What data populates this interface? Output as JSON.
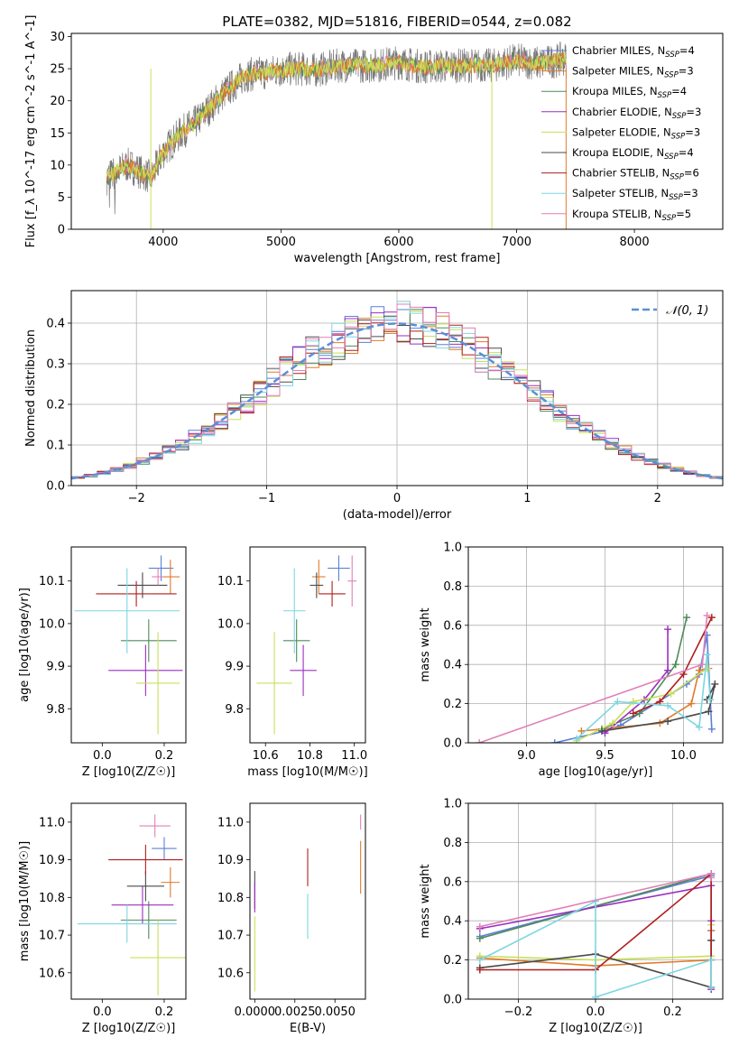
{
  "title": "PLATE=0382, MJD=51816, FIBERID=0544, z=0.082",
  "colors": [
    "#5b7fd6",
    "#e07a2b",
    "#4f8a5b",
    "#9b2fc0",
    "#c8e05a",
    "#4a4a4a",
    "#b01e1e",
    "#7dd6e0",
    "#e080b8"
  ],
  "chart_data": [
    {
      "id": "spectrum",
      "type": "line",
      "xlabel": "wavelength [Angstrom, rest frame]",
      "ylabel": "Flux [f_λ 10^-17 erg cm^-2 s^-1 A^-1]",
      "xlim": [
        3220,
        8750
      ],
      "ylim": [
        0,
        30.5
      ],
      "xticks": [
        "4000",
        "5000",
        "6000",
        "7000",
        "8000"
      ],
      "yticks": [
        "0",
        "5",
        "10",
        "15",
        "20",
        "25",
        "30"
      ],
      "grid": false,
      "legend_position": "top-right",
      "continuum": {
        "x": [
          3520,
          3700,
          3900,
          4000,
          4150,
          4300,
          4500,
          4700,
          4900,
          5100,
          5300,
          5500,
          5800,
          6000,
          6200,
          6500,
          6800,
          7000,
          7200,
          7400
        ],
        "y": [
          8,
          10,
          8,
          12,
          15,
          17,
          21,
          24,
          24.5,
          25,
          24.8,
          25.5,
          25.5,
          26,
          25.3,
          25.5,
          25.5,
          26.3,
          25.8,
          26.5
        ]
      },
      "data_range": [
        3520,
        7420
      ],
      "models_range": [
        3520,
        7420
      ],
      "series": [
        {
          "name": "Chabrier MILES, N_SSP=4",
          "name_main": "Chabrier MILES, N",
          "name_sub": "SSP",
          "name_tail": "=4"
        },
        {
          "name": "Salpeter MILES, N_SSP=3",
          "name_main": "Salpeter MILES, N",
          "name_sub": "SSP",
          "name_tail": "=3"
        },
        {
          "name": "Kroupa MILES, N_SSP=4",
          "name_main": "Kroupa MILES, N",
          "name_sub": "SSP",
          "name_tail": "=4"
        },
        {
          "name": "Chabrier ELODIE, N_SSP=3",
          "name_main": "Chabrier ELODIE, N",
          "name_sub": "SSP",
          "name_tail": "=3"
        },
        {
          "name": "Salpeter ELODIE, N_SSP=3",
          "name_main": "Salpeter ELODIE, N",
          "name_sub": "SSP",
          "name_tail": "=3"
        },
        {
          "name": "Kroupa ELODIE, N_SSP=4",
          "name_main": "Kroupa ELODIE, N",
          "name_sub": "SSP",
          "name_tail": "=4"
        },
        {
          "name": "Chabrier STELIB, N_SSP=6",
          "name_main": "Chabrier STELIB, N",
          "name_sub": "SSP",
          "name_tail": "=6"
        },
        {
          "name": "Salpeter STELIB, N_SSP=3",
          "name_main": "Salpeter STELIB, N",
          "name_sub": "SSP",
          "name_tail": "=3"
        },
        {
          "name": "Kroupa STELIB, N_SSP=5",
          "name_main": "Kroupa STELIB, N",
          "name_sub": "SSP",
          "name_tail": "=5"
        }
      ]
    },
    {
      "id": "residuals",
      "type": "histogram",
      "xlabel": "(data-model)/error",
      "ylabel": "Normed distribution",
      "xlim": [
        -2.5,
        2.5
      ],
      "ylim": [
        0,
        0.48
      ],
      "xticks": [
        "−2",
        "−1",
        "0",
        "1",
        "2"
      ],
      "xtick_values": [
        -2,
        -1,
        0,
        1,
        2
      ],
      "yticks": [
        "0.0",
        "0.1",
        "0.2",
        "0.3",
        "0.4"
      ],
      "ytick_values": [
        0,
        0.1,
        0.2,
        0.3,
        0.4
      ],
      "grid": true,
      "bin_width": 0.1,
      "legend": "𝒩(0, 1)",
      "legend_position": "top-right"
    },
    {
      "id": "age_vs_Z",
      "type": "errorbar",
      "xlabel": "Z [log10(Z/Z☉)]",
      "ylabel": "age [log10(age/yr)]",
      "xlim": [
        -0.1,
        0.27
      ],
      "ylim": [
        9.72,
        10.18
      ],
      "xticks": [
        "0.0",
        "0.2"
      ],
      "xtick_values": [
        0,
        0.2
      ],
      "yticks": [
        "9.8",
        "9.9",
        "10.0",
        "10.1"
      ],
      "ytick_values": [
        9.8,
        9.9,
        10.0,
        10.1
      ],
      "points": [
        {
          "x": 0.19,
          "y": 10.13,
          "xerr": 0.04,
          "yerr": 0.03,
          "c": 0
        },
        {
          "x": 0.22,
          "y": 10.11,
          "xerr": 0.03,
          "yerr": 0.04,
          "c": 1
        },
        {
          "x": 0.15,
          "y": 9.96,
          "xerr": 0.09,
          "yerr": 0.05,
          "c": 2
        },
        {
          "x": 0.14,
          "y": 9.89,
          "xerr": 0.12,
          "yerr": 0.06,
          "c": 3
        },
        {
          "x": 0.18,
          "y": 9.86,
          "xerr": 0.07,
          "yerr": 0.12,
          "c": 4
        },
        {
          "x": 0.13,
          "y": 10.09,
          "xerr": 0.08,
          "yerr": 0.03,
          "c": 5
        },
        {
          "x": 0.11,
          "y": 10.07,
          "xerr": 0.13,
          "yerr": 0.03,
          "c": 6
        },
        {
          "x": 0.08,
          "y": 10.03,
          "xerr": 0.17,
          "yerr": 0.1,
          "c": 7
        },
        {
          "x": 0.18,
          "y": 10.11,
          "xerr": 0.02,
          "yerr": 0.02,
          "c": 8
        }
      ]
    },
    {
      "id": "age_vs_mass",
      "type": "errorbar",
      "xlabel": "mass [log10(M/M☉)]",
      "ylabel": "",
      "xlim": [
        10.53,
        11.05
      ],
      "ylim": [
        9.72,
        10.18
      ],
      "xticks": [
        "10.6",
        "10.8",
        "11.0"
      ],
      "xtick_values": [
        10.6,
        10.8,
        11.0
      ],
      "yticks": [
        "9.8",
        "9.9",
        "10.0",
        "10.1"
      ],
      "ytick_values": [
        9.8,
        9.9,
        10.0,
        10.1
      ],
      "points": [
        {
          "x": 10.93,
          "y": 10.13,
          "xerr": 0.05,
          "yerr": 0.03,
          "c": 0
        },
        {
          "x": 10.84,
          "y": 10.11,
          "xerr": 0.03,
          "yerr": 0.04,
          "c": 1
        },
        {
          "x": 10.74,
          "y": 9.96,
          "xerr": 0.06,
          "yerr": 0.05,
          "c": 2
        },
        {
          "x": 10.77,
          "y": 9.89,
          "xerr": 0.06,
          "yerr": 0.06,
          "c": 3
        },
        {
          "x": 10.64,
          "y": 9.86,
          "xerr": 0.08,
          "yerr": 0.12,
          "c": 4
        },
        {
          "x": 10.83,
          "y": 10.09,
          "xerr": 0.03,
          "yerr": 0.03,
          "c": 5
        },
        {
          "x": 10.9,
          "y": 10.07,
          "xerr": 0.06,
          "yerr": 0.03,
          "c": 6
        },
        {
          "x": 10.73,
          "y": 10.03,
          "xerr": 0.05,
          "yerr": 0.1,
          "c": 7
        },
        {
          "x": 10.99,
          "y": 10.1,
          "xerr": 0.02,
          "yerr": 0.06,
          "c": 8
        }
      ]
    },
    {
      "id": "weight_vs_age",
      "type": "line",
      "xlabel": "age [log10(age/yr)]",
      "ylabel": "mass weight",
      "xlim": [
        8.63,
        10.25
      ],
      "ylim": [
        0,
        1
      ],
      "xticks": [
        "9.0",
        "9.5",
        "10.0"
      ],
      "xtick_values": [
        9.0,
        9.5,
        10.0
      ],
      "yticks": [
        "0.0",
        "0.2",
        "0.4",
        "0.6",
        "0.8",
        "1.0"
      ],
      "ytick_values": [
        0,
        0.2,
        0.4,
        0.6,
        0.8,
        1.0
      ],
      "grid": true,
      "series": [
        {
          "c": 0,
          "x": [
            9.18,
            9.5,
            9.6,
            10.02,
            10.1,
            10.15,
            10.18
          ],
          "y": [
            0.0,
            0.06,
            0.09,
            0.3,
            0.35,
            0.55,
            0.07
          ]
        },
        {
          "c": 1,
          "x": [
            9.35,
            9.85,
            10.05,
            10.1,
            10.16
          ],
          "y": [
            0.06,
            0.1,
            0.2,
            0.37,
            0.38
          ]
        },
        {
          "c": 2,
          "x": [
            9.48,
            9.72,
            9.95,
            10.02
          ],
          "y": [
            0.07,
            0.15,
            0.4,
            0.64
          ]
        },
        {
          "c": 3,
          "x": [
            9.5,
            9.75,
            9.9,
            9.9
          ],
          "y": [
            0.05,
            0.22,
            0.37,
            0.58
          ]
        },
        {
          "c": 4,
          "x": [
            9.32,
            9.55,
            9.68,
            9.92,
            10.15
          ],
          "y": [
            0.01,
            0.1,
            0.21,
            0.25,
            0.38
          ]
        },
        {
          "c": 5,
          "x": [
            9.48,
            9.9,
            10.16,
            10.2,
            10.15
          ],
          "y": [
            0.06,
            0.11,
            0.16,
            0.3,
            0.22
          ]
        },
        {
          "c": 6,
          "x": [
            9.68,
            9.85,
            10.0,
            10.18
          ],
          "y": [
            0.15,
            0.21,
            0.35,
            0.64
          ]
        },
        {
          "c": 7,
          "x": [
            9.32,
            9.58,
            9.9,
            10.1,
            10.15,
            10.17
          ],
          "y": [
            0.02,
            0.21,
            0.19,
            0.08,
            0.45,
            0.22
          ]
        },
        {
          "c": 8,
          "x": [
            8.7,
            10.12,
            10.15
          ],
          "y": [
            0.0,
            0.4,
            0.65
          ]
        }
      ]
    },
    {
      "id": "mass_vs_Z",
      "type": "errorbar",
      "xlabel": "Z [log10(Z/Z☉)]",
      "ylabel": "mass [log10(M/M☉)]",
      "xlim": [
        -0.1,
        0.27
      ],
      "ylim": [
        10.53,
        11.05
      ],
      "xticks": [
        "0.0",
        "0.2"
      ],
      "xtick_values": [
        0,
        0.2
      ],
      "yticks": [
        "10.6",
        "10.7",
        "10.8",
        "10.9",
        "11.0"
      ],
      "ytick_values": [
        10.6,
        10.7,
        10.8,
        10.9,
        11.0
      ],
      "points": [
        {
          "x": 0.2,
          "y": 10.93,
          "xerr": 0.04,
          "yerr": 0.03,
          "c": 0
        },
        {
          "x": 0.22,
          "y": 10.84,
          "xerr": 0.03,
          "yerr": 0.04,
          "c": 1
        },
        {
          "x": 0.15,
          "y": 10.74,
          "xerr": 0.09,
          "yerr": 0.05,
          "c": 2
        },
        {
          "x": 0.13,
          "y": 10.78,
          "xerr": 0.1,
          "yerr": 0.05,
          "c": 3
        },
        {
          "x": 0.18,
          "y": 10.64,
          "xerr": 0.09,
          "yerr": 0.1,
          "c": 4
        },
        {
          "x": 0.14,
          "y": 10.83,
          "xerr": 0.06,
          "yerr": 0.04,
          "c": 5
        },
        {
          "x": 0.14,
          "y": 10.9,
          "xerr": 0.12,
          "yerr": 0.04,
          "c": 6
        },
        {
          "x": 0.08,
          "y": 10.73,
          "xerr": 0.16,
          "yerr": 0.05,
          "c": 7
        },
        {
          "x": 0.17,
          "y": 10.99,
          "xerr": 0.05,
          "yerr": 0.03,
          "c": 8
        }
      ]
    },
    {
      "id": "mass_vs_EBV",
      "type": "errorbar",
      "xlabel": "E(B-V)",
      "ylabel": "",
      "xlim": [
        -0.0003,
        0.0069
      ],
      "ylim": [
        10.53,
        11.05
      ],
      "xticks": [
        "0.0000",
        "0.0025",
        "0.0050"
      ],
      "xtick_values": [
        0,
        0.0025,
        0.005
      ],
      "yticks": [
        "10.6",
        "10.7",
        "10.8",
        "10.9",
        "11.0"
      ],
      "ytick_values": [
        10.6,
        10.7,
        10.8,
        10.9,
        11.0
      ],
      "points": [
        {
          "x": 0.0,
          "y": 10.82,
          "xerr": 0,
          "yerr": 0.05,
          "c": 5
        },
        {
          "x": 0.0,
          "y": 10.8,
          "xerr": 0,
          "yerr": 0.04,
          "c": 3
        },
        {
          "x": 0.0,
          "y": 10.65,
          "xerr": 0,
          "yerr": 0.1,
          "c": 4
        },
        {
          "x": 0.0033,
          "y": 10.88,
          "xerr": 0,
          "yerr": 0.05,
          "c": 6
        },
        {
          "x": 0.0033,
          "y": 10.75,
          "xerr": 0,
          "yerr": 0.06,
          "c": 7
        },
        {
          "x": 0.0066,
          "y": 10.88,
          "xerr": 0,
          "yerr": 0.07,
          "c": 1
        },
        {
          "x": 0.0066,
          "y": 11.0,
          "xerr": 0,
          "yerr": 0.02,
          "c": 8
        }
      ]
    },
    {
      "id": "weight_vs_Z",
      "type": "line",
      "xlabel": "Z [log10(Z/Z☉)]",
      "ylabel": "mass weight",
      "xlim": [
        -0.33,
        0.33
      ],
      "ylim": [
        0,
        1
      ],
      "xticks": [
        "−0.2",
        "0.0",
        "0.2"
      ],
      "xtick_values": [
        -0.2,
        0,
        0.2
      ],
      "yticks": [
        "0.0",
        "0.2",
        "0.4",
        "0.6",
        "0.8",
        "1.0"
      ],
      "ytick_values": [
        0,
        0.2,
        0.4,
        0.6,
        0.8,
        1.0
      ],
      "grid": true,
      "series": [
        {
          "c": 0,
          "x": [
            -0.3,
            0.3,
            0.3,
            0.3
          ],
          "y": [
            0.32,
            0.63,
            0.35,
            0.06
          ]
        },
        {
          "c": 1,
          "x": [
            -0.3,
            0.0,
            0.3,
            0.3
          ],
          "y": [
            0.21,
            0.17,
            0.2,
            0.35
          ]
        },
        {
          "c": 2,
          "x": [
            -0.3,
            0.3,
            0.3
          ],
          "y": [
            0.31,
            0.64,
            0.3
          ]
        },
        {
          "c": 3,
          "x": [
            -0.3,
            0.3,
            0.3,
            0.3
          ],
          "y": [
            0.36,
            0.58,
            0.4,
            0.05
          ]
        },
        {
          "c": 4,
          "x": [
            -0.3,
            0.0,
            0.3,
            0.3
          ],
          "y": [
            0.22,
            0.2,
            0.22,
            0.38
          ]
        },
        {
          "c": 5,
          "x": [
            -0.3,
            0.0,
            0.3,
            0.3
          ],
          "y": [
            0.16,
            0.23,
            0.06,
            0.3
          ]
        },
        {
          "c": 6,
          "x": [
            -0.3,
            0.0,
            0.3,
            0.3
          ],
          "y": [
            0.15,
            0.15,
            0.64,
            0.2
          ]
        },
        {
          "c": 7,
          "x": [
            -0.3,
            0.0,
            0.0,
            0.3,
            0.3
          ],
          "y": [
            0.2,
            0.5,
            0.01,
            0.2,
            0.06
          ]
        },
        {
          "c": 8,
          "x": [
            -0.3,
            0.3,
            0.3
          ],
          "y": [
            0.37,
            0.64,
            0.62
          ]
        }
      ]
    }
  ]
}
